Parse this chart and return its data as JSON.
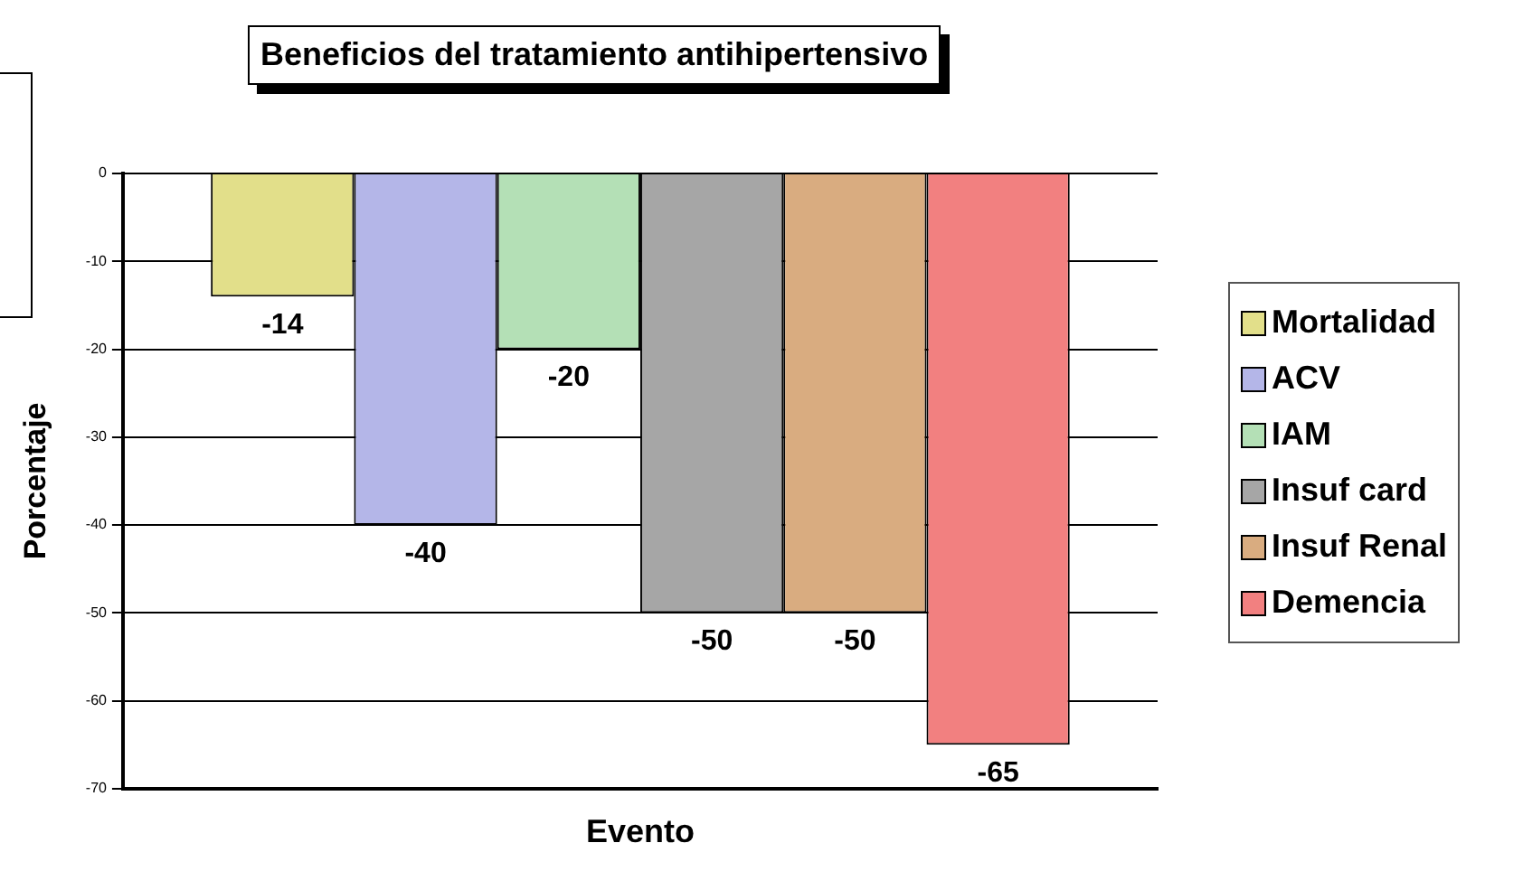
{
  "chart_data": {
    "type": "bar",
    "title": "Beneficios del tratamiento antihipertensivo",
    "xlabel": "Evento",
    "ylabel": "Porcentaje",
    "categories": [
      null
    ],
    "series": [
      {
        "name": "Mortalidad",
        "color": "#e2df8a",
        "values": [
          -14
        ]
      },
      {
        "name": "ACV",
        "color": "#b4b6e8",
        "values": [
          -40
        ]
      },
      {
        "name": "IAM",
        "color": "#b4e0b6",
        "values": [
          -20
        ]
      },
      {
        "name": "Insuf card",
        "color": "#a6a6a6",
        "values": [
          -50
        ]
      },
      {
        "name": "Insuf Renal",
        "color": "#d9ac80",
        "values": [
          -50
        ]
      },
      {
        "name": "Demencia",
        "color": "#f28080",
        "values": [
          -65
        ]
      }
    ],
    "ylim": [
      -70,
      0
    ],
    "yticks": [
      0,
      -10,
      -20,
      -30,
      -40,
      -50,
      -60,
      -70
    ],
    "grid": "y",
    "legend": "right",
    "data_labels": true
  }
}
